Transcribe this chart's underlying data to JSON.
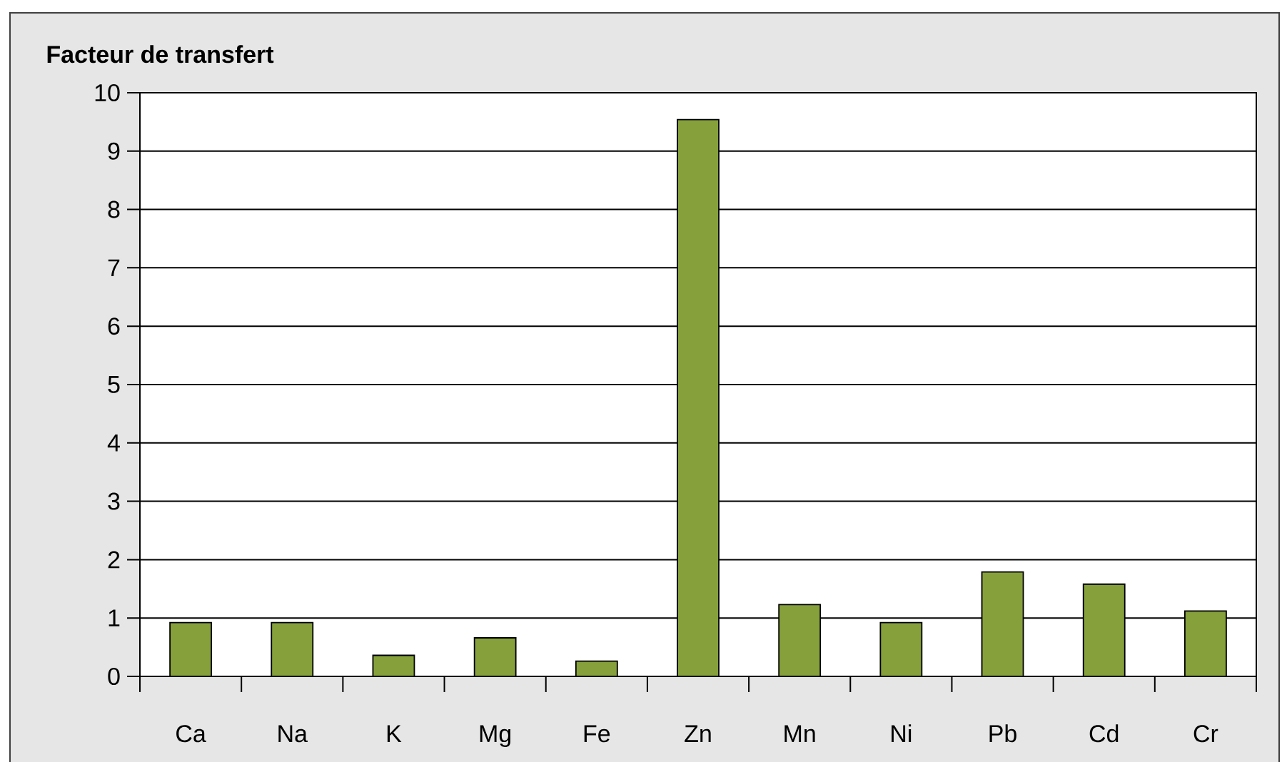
{
  "chart_data": {
    "type": "bar",
    "ylabel": "Facteur de transfert",
    "categories": [
      "Ca",
      "Na",
      "K",
      "Mg",
      "Fe",
      "Zn",
      "Mn",
      "Ni",
      "Pb",
      "Cd",
      "Cr"
    ],
    "values": [
      0.92,
      0.92,
      0.36,
      0.66,
      0.26,
      9.54,
      1.23,
      0.92,
      1.79,
      1.58,
      1.12
    ],
    "color": "#86a03c",
    "ylim": [
      0,
      10
    ],
    "yticks": [
      0,
      1,
      2,
      3,
      4,
      5,
      6,
      7,
      8,
      9,
      10
    ],
    "grid": "y"
  }
}
